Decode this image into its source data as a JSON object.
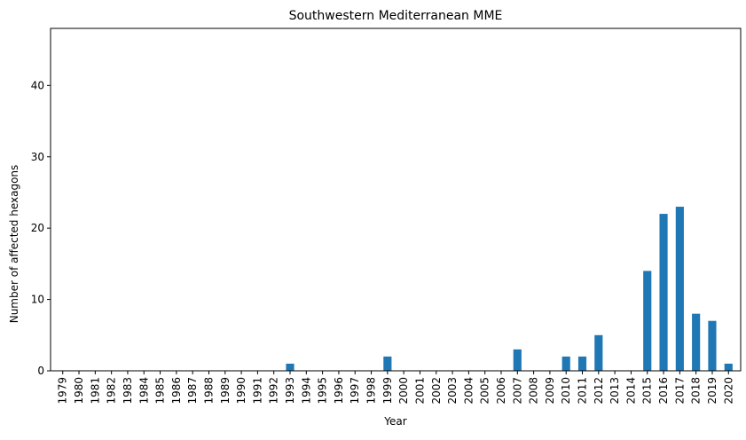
{
  "chart_data": {
    "type": "bar",
    "title": "Southwestern Mediterranean MME",
    "xlabel": "Year",
    "ylabel": "Number of affected hexagons",
    "ylim": [
      0,
      48
    ],
    "yticks": [
      0,
      10,
      20,
      30,
      40
    ],
    "grid": false,
    "legend": "none",
    "bar_color": "#1f77b4",
    "categories": [
      "1979",
      "1980",
      "1981",
      "1982",
      "1983",
      "1984",
      "1985",
      "1986",
      "1987",
      "1988",
      "1989",
      "1990",
      "1991",
      "1992",
      "1993",
      "1994",
      "1995",
      "1996",
      "1997",
      "1998",
      "1999",
      "2000",
      "2001",
      "2002",
      "2003",
      "2004",
      "2005",
      "2006",
      "2007",
      "2008",
      "2009",
      "2010",
      "2011",
      "2012",
      "2013",
      "2014",
      "2015",
      "2016",
      "2017",
      "2018",
      "2019",
      "2020"
    ],
    "values": [
      0,
      0,
      0,
      0,
      0,
      0,
      0,
      0,
      0,
      0,
      0,
      0,
      0,
      0,
      1,
      0,
      0,
      0,
      0,
      0,
      2,
      0,
      0,
      0,
      0,
      0,
      0,
      0,
      3,
      0,
      0,
      2,
      2,
      5,
      0,
      0,
      14,
      22,
      23,
      8,
      7,
      1
    ]
  }
}
